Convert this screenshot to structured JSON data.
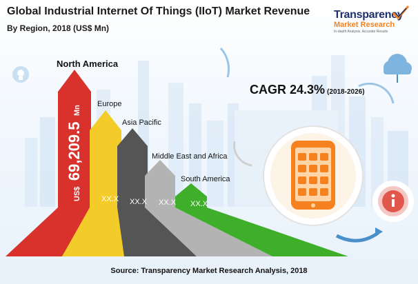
{
  "header": {
    "title": "Global Industrial Internet Of Things (IIoT) Market Revenue",
    "subtitle": "By Region, 2018 (US$ Mn)"
  },
  "brand": {
    "name": "Transparency",
    "line2": "Market Research",
    "tagline": "In-depth Analysis. Accurate Results"
  },
  "cagr": {
    "label": "CAGR 24.3%",
    "period": "(2018-2026)"
  },
  "footer": {
    "source": "Source: Transparency Market Research Analysis, 2018"
  },
  "colors": {
    "north_america": "#d9322c",
    "europe": "#f3cc2a",
    "asia_pacific": "#555555",
    "middle_east_africa": "#b3b3b3",
    "south_america": "#3fae2a",
    "accent_blue": "#4a90c8"
  },
  "icons": [
    "smartphone-icon",
    "cloud-icon",
    "info-icon",
    "idea-bulb-icon"
  ],
  "chart_data": {
    "type": "bar",
    "title": "Global Industrial Internet Of Things (IIoT) Market Revenue",
    "subtitle": "By Region, 2018 (US$ Mn)",
    "unit": "US$ Mn",
    "categories": [
      "North America",
      "Europe",
      "Asia Pacific",
      "Middle East and Africa",
      "South America"
    ],
    "value_labels": [
      "US$ 69,209.5 Mn",
      "XX.X",
      "XX.X",
      "XX.X",
      "XX.X"
    ],
    "values": [
      69209.5,
      null,
      null,
      null,
      null
    ],
    "value_label_parts": {
      "prefix": "US$",
      "number": "69,209.5",
      "suffix": "Mn"
    }
  }
}
